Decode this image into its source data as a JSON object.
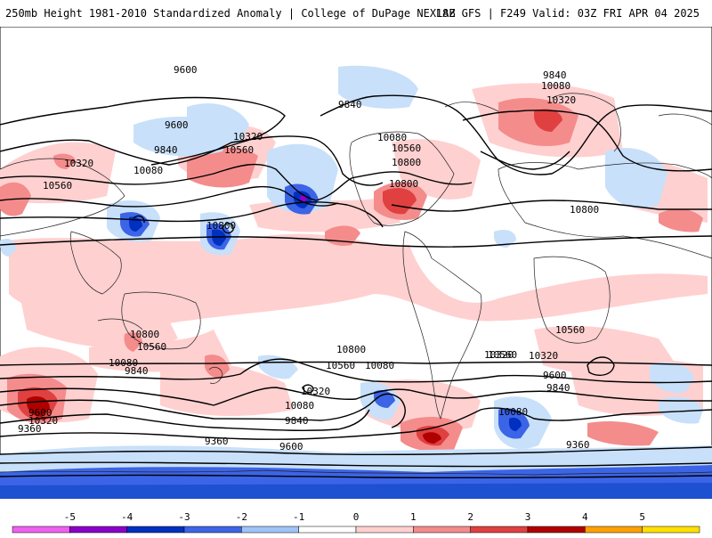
{
  "header": {
    "title": "250mb Height 1981-2010 Standardized Anomaly | College of DuPage NEXLAB",
    "run_info": "18Z GFS | F249 Valid: 03Z FRI APR 04 2025"
  },
  "map": {
    "contour_labels": [
      "9600",
      "9600",
      "9840",
      "10320",
      "10560",
      "10080",
      "10320",
      "10560",
      "9840",
      "10080",
      "10800",
      "9840",
      "10080",
      "10320",
      "10560",
      "10800",
      "10800",
      "10800",
      "10560",
      "10320",
      "10080",
      "10800",
      "10560",
      "10080",
      "9840",
      "9600",
      "10320",
      "9840",
      "9600",
      "9360",
      "10800",
      "10560",
      "10320",
      "10080",
      "9840",
      "9600",
      "9360",
      "10080",
      "10560",
      "10320",
      "10560",
      "9600",
      "9840",
      "10080",
      "10320",
      "9360"
    ]
  },
  "colorbar": {
    "ticks": [
      "-5",
      "-4",
      "-3",
      "-2",
      "-1",
      "0",
      "1",
      "2",
      "3",
      "4",
      "5"
    ],
    "colors": [
      "#f060f0",
      "#8a00c8",
      "#0030c0",
      "#3c64e6",
      "#a0c4f8",
      "#ffffff",
      "#ffd0d0",
      "#f48c8c",
      "#e04040",
      "#b00000",
      "#ffa000",
      "#ffe000"
    ]
  }
}
